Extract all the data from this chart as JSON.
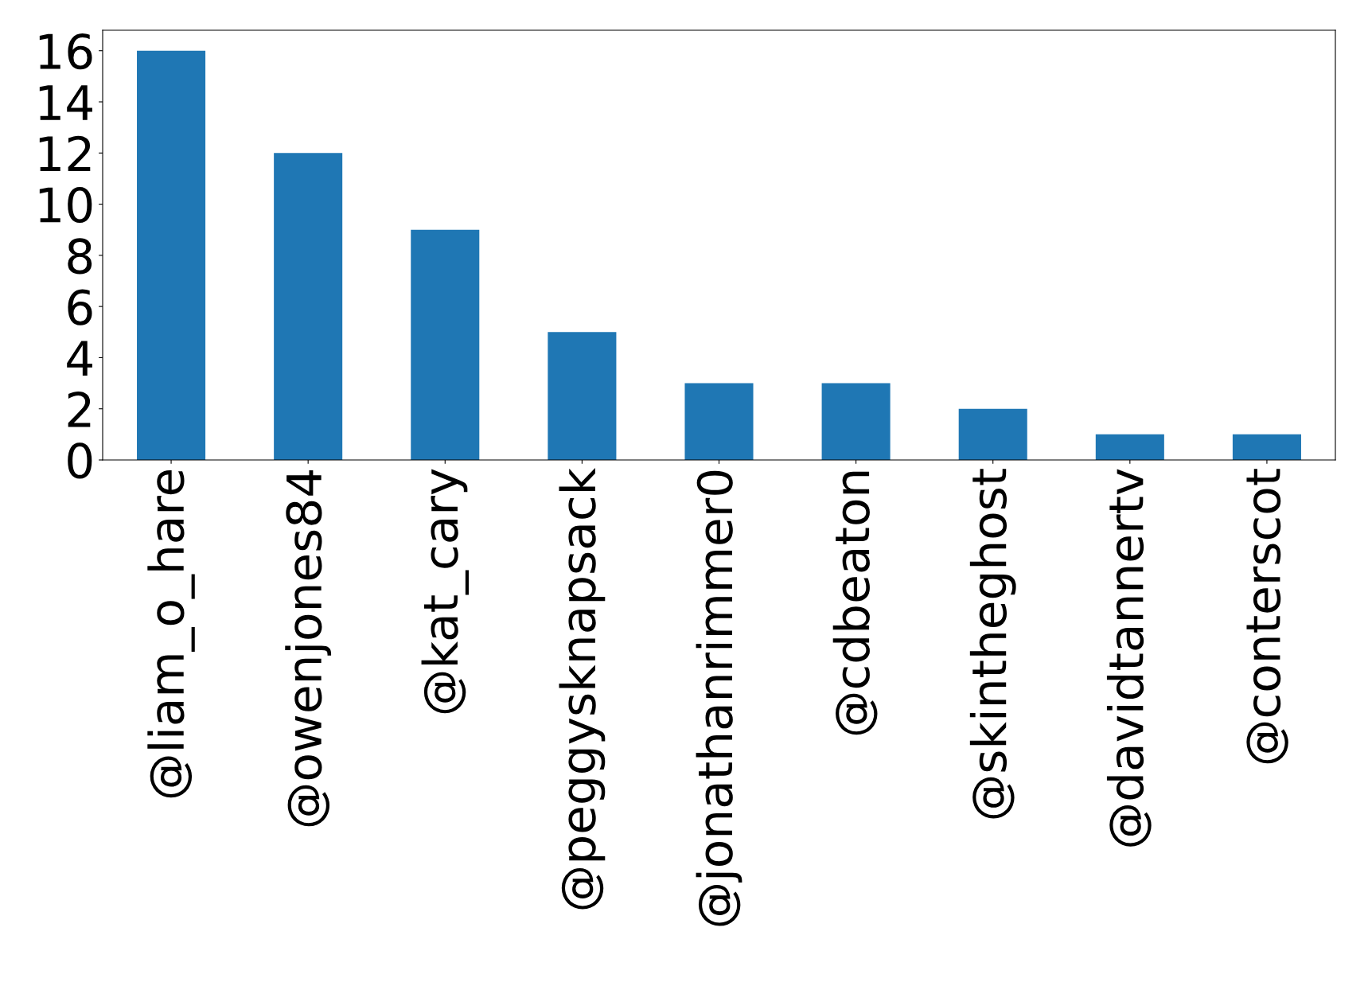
{
  "chart_data": {
    "type": "bar",
    "categories": [
      "@liam_o_hare",
      "@owenjones84",
      "@kat_cary",
      "@peggysknapsack",
      "@jonathanrimmer0",
      "@cdbeaton",
      "@skintheghost",
      "@davidtannertv",
      "@conterscot"
    ],
    "values": [
      16,
      12,
      9,
      5,
      3,
      3,
      2,
      1,
      1
    ],
    "color": "#1f77b4",
    "ylim": [
      0,
      16.8
    ],
    "yticks": [
      0,
      2,
      4,
      6,
      8,
      10,
      12,
      14,
      16
    ],
    "grid": false,
    "legend": false
  }
}
